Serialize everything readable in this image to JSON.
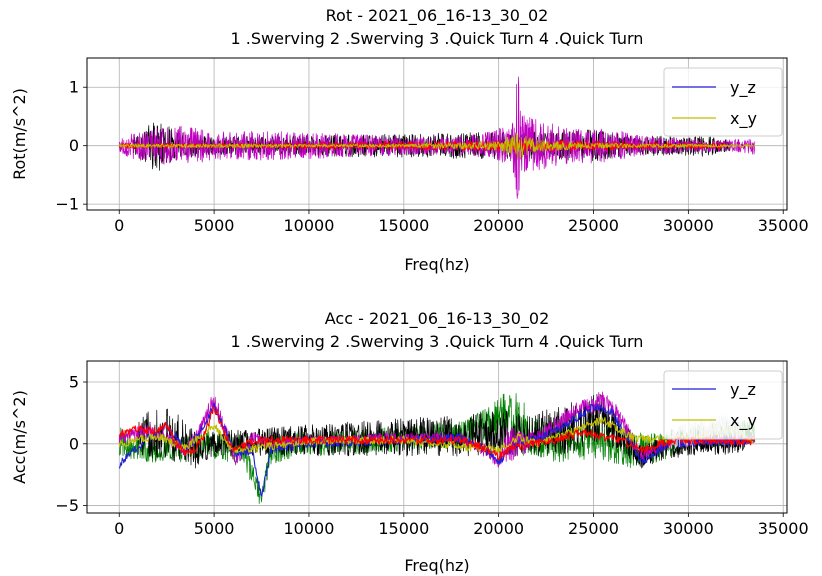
{
  "chart_data": [
    {
      "type": "line",
      "title": "Rot - 2021_06_16-13_30_02",
      "subtitle": "1 .Swerving 2 .Swerving 3 .Quick Turn 4 .Quick Turn",
      "xlabel": "Freq(hz)",
      "ylabel": "Rot(m/s^2)",
      "xlim": [
        -1700,
        35200
      ],
      "ylim": [
        -1.1,
        1.5
      ],
      "xticks": [
        0,
        5000,
        10000,
        15000,
        20000,
        25000,
        30000,
        35000
      ],
      "xtick_labels": [
        "0",
        "5000",
        "10000",
        "15000",
        "20000",
        "25000",
        "30000",
        "35000"
      ],
      "yticks": [
        -1,
        0,
        1
      ],
      "ytick_labels": [
        "−1",
        "0",
        "1"
      ],
      "grid": true,
      "legend_position": "top-right",
      "legend": [
        {
          "label": "y_z",
          "color": "#1f1fd6"
        },
        {
          "label": "x_y",
          "color": "#bfbf00"
        }
      ],
      "series": [
        {
          "color": "#000000",
          "x": [
            700,
            1500,
            2000,
            2500,
            3000,
            4000,
            4800,
            23500,
            24500,
            25500,
            26500,
            27500,
            28500,
            29500,
            30500,
            31500,
            32200
          ],
          "amplitude": [
            0.12,
            0.35,
            0.45,
            0.35,
            0.25,
            0.2,
            0.15,
            0.25,
            0.28,
            0.25,
            0.2,
            0.15,
            0.18,
            0.15,
            0.2,
            0.15,
            0.1
          ]
        },
        {
          "color": "#c000c0",
          "x": [
            0,
            1000,
            3000,
            5000,
            8000,
            12000,
            16000,
            19000,
            20500,
            21000,
            21500,
            22500,
            24000,
            25000,
            26500,
            28000,
            32000,
            33500
          ],
          "amplitude": [
            0.15,
            0.25,
            0.35,
            0.25,
            0.25,
            0.2,
            0.15,
            0.2,
            0.35,
            0.7,
            0.5,
            0.4,
            0.3,
            0.3,
            0.25,
            0.15,
            0.1,
            0.15
          ],
          "peak": {
            "x": 21000,
            "max": 1.38,
            "min": -0.95
          }
        },
        {
          "color": "#ff0000",
          "x": [
            0,
            5000,
            23500,
            27500,
            32000
          ],
          "amplitude": [
            0.05,
            0.04,
            0.1,
            0.06,
            0.05
          ]
        },
        {
          "name": "x_y",
          "color": "#bfbf00",
          "x": [
            0,
            5000,
            10000,
            15000,
            20000,
            21000,
            22000,
            25000,
            30000,
            33500
          ],
          "amplitude": [
            0.03,
            0.04,
            0.03,
            0.03,
            0.08,
            0.25,
            0.1,
            0.05,
            0.03,
            0.03
          ]
        }
      ]
    },
    {
      "type": "line",
      "title": "Acc - 2021_06_16-13_30_02",
      "subtitle": "1 .Swerving 2 .Swerving 3 .Quick Turn 4 .Quick Turn",
      "xlabel": "Freq(hz)",
      "ylabel": "Acc(m/s^2)",
      "xlim": [
        -1700,
        35200
      ],
      "ylim": [
        -5.6,
        6.7
      ],
      "xticks": [
        0,
        5000,
        10000,
        15000,
        20000,
        25000,
        30000,
        35000
      ],
      "xtick_labels": [
        "0",
        "5000",
        "10000",
        "15000",
        "20000",
        "25000",
        "30000",
        "35000"
      ],
      "yticks": [
        -5,
        0,
        5
      ],
      "ytick_labels": [
        "−5",
        "0",
        "5"
      ],
      "grid": true,
      "legend_position": "top-right",
      "legend": [
        {
          "label": "y_z",
          "color": "#1f1fd6"
        },
        {
          "label": "x_y",
          "color": "#bfbf00"
        }
      ],
      "series": [
        {
          "color": "#008000",
          "x": [
            0,
            1500,
            3000,
            5000,
            6500,
            7500,
            8000,
            10000,
            14000,
            18000,
            19500,
            20500,
            21000,
            22000,
            23000,
            25000,
            27000,
            28000,
            30000,
            33500
          ],
          "center": [
            0.2,
            -0.5,
            -0.5,
            0.0,
            -0.5,
            -4.5,
            -0.5,
            0.0,
            0.3,
            0.8,
            1.5,
            2.5,
            1.5,
            0.5,
            0.0,
            0.3,
            -0.5,
            -0.5,
            0.5,
            1.0
          ],
          "amplitude": [
            1.2,
            1.0,
            1.0,
            1.2,
            1.2,
            0.8,
            1.2,
            1.0,
            1.0,
            1.1,
            1.5,
            2.0,
            2.5,
            1.5,
            1.5,
            1.5,
            1.5,
            1.3,
            1.0,
            1.0
          ]
        },
        {
          "color": "#000000",
          "x": [
            1000,
            2000,
            3000,
            4000,
            5000,
            23500,
            24500,
            25500,
            26500,
            27500,
            29000,
            31000,
            33000
          ],
          "center": [
            0.5,
            1.0,
            0.5,
            -0.5,
            0.0,
            1.0,
            2.0,
            2.0,
            0.5,
            -1.0,
            -0.3,
            0.0,
            0.0
          ],
          "amplitude": [
            1.5,
            2.2,
            2.0,
            1.5,
            1.0,
            2.0,
            2.2,
            2.0,
            1.5,
            1.0,
            0.9,
            0.9,
            0.8
          ]
        },
        {
          "color": "#c000c0",
          "x": [
            0,
            1500,
            2500,
            3500,
            4200,
            5000,
            5600,
            6200,
            7000,
            8000,
            10000,
            12000,
            14000,
            16000,
            18000,
            19500,
            20000,
            20500,
            21000,
            22000,
            23000,
            24000,
            25000,
            25500,
            26000,
            27000,
            27500,
            29000,
            31000,
            33000,
            33500
          ],
          "center": [
            0.5,
            1.0,
            0.5,
            -0.5,
            1.0,
            3.5,
            1.0,
            -1.5,
            0.5,
            0.0,
            0.3,
            0.3,
            0.5,
            0.5,
            0.5,
            -0.8,
            -1.5,
            0.0,
            0.0,
            0.5,
            1.5,
            2.5,
            3.2,
            3.5,
            3.0,
            0.5,
            -1.0,
            0.0,
            0.3,
            0.3,
            0.5
          ],
          "amplitude": [
            0.5,
            0.6,
            0.5,
            0.6,
            0.6,
            0.8,
            0.6,
            0.6,
            0.5,
            0.4,
            0.4,
            0.4,
            0.4,
            0.4,
            0.4,
            0.5,
            0.5,
            1.5,
            1.2,
            0.6,
            0.6,
            0.8,
            0.8,
            0.8,
            0.8,
            0.6,
            0.4,
            0.4,
            0.4,
            0.4,
            0.4
          ]
        },
        {
          "name": "y_z",
          "color": "#1f1fd6",
          "x": [
            0,
            1500,
            2500,
            3500,
            4200,
            5000,
            5600,
            6200,
            7000,
            7500,
            8000,
            10000,
            14000,
            18000,
            19500,
            20000,
            21000,
            23000,
            25000,
            26000,
            27500,
            29000,
            33500
          ],
          "values": [
            -1.7,
            0.5,
            1.5,
            -0.5,
            0.8,
            3.0,
            1.0,
            -1.0,
            -0.5,
            -4.3,
            -0.5,
            0.0,
            0.2,
            0.5,
            -0.5,
            -1.5,
            0.0,
            1.0,
            3.0,
            2.5,
            -1.5,
            0.0,
            0.3
          ]
        },
        {
          "name": "x_y",
          "color": "#bfbf00",
          "x": [
            0,
            2000,
            3500,
            5000,
            6000,
            7500,
            10000,
            15000,
            20000,
            21000,
            22000,
            24000,
            25500,
            27000,
            28500,
            30000,
            32000,
            33500
          ],
          "values": [
            0.0,
            0.6,
            -0.3,
            1.5,
            -0.5,
            -0.3,
            0.2,
            0.3,
            -0.5,
            0.5,
            0.0,
            1.0,
            2.0,
            0.5,
            0.3,
            0.5,
            1.2,
            0.3
          ]
        },
        {
          "color": "#d0d0d0",
          "x": [
            29000,
            30000,
            31000,
            32000,
            33000
          ],
          "center": [
            0.3,
            0.8,
            1.2,
            1.5,
            1.0
          ],
          "amplitude": [
            0.8,
            1.0,
            1.0,
            1.0,
            0.8
          ]
        },
        {
          "color": "#ff0000",
          "x": [
            0,
            1000,
            2000,
            2500,
            3000,
            3500,
            4000,
            4500,
            5000,
            5500,
            6000,
            7000,
            8000,
            10000,
            14000,
            18000,
            19500,
            20000,
            21000,
            23000,
            24500,
            25500,
            26500,
            27500,
            29000,
            31000,
            33500
          ],
          "values": [
            0.8,
            1.2,
            1.0,
            1.5,
            0.0,
            -0.8,
            -0.5,
            0.8,
            3.0,
            1.0,
            -0.5,
            0.2,
            0.3,
            0.3,
            0.3,
            0.3,
            -0.5,
            -1.0,
            -0.2,
            0.3,
            1.0,
            0.5,
            0.3,
            -0.5,
            0.2,
            0.3,
            0.2
          ]
        }
      ]
    }
  ]
}
